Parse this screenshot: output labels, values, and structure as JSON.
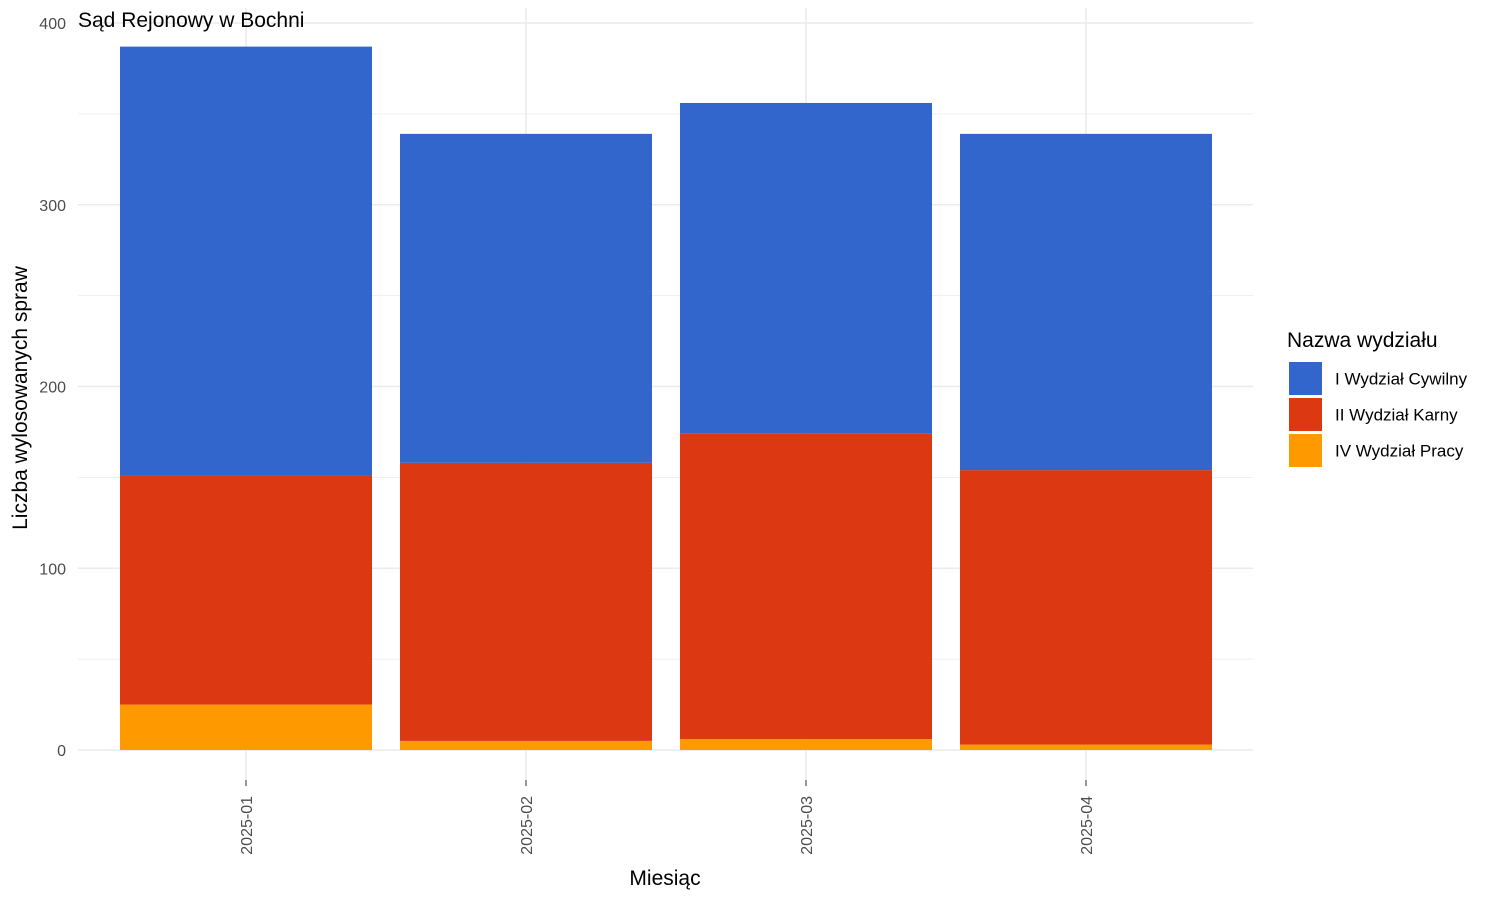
{
  "chart_data": {
    "type": "bar",
    "stacked": true,
    "title": "Sąd Rejonowy w Bochni",
    "xlabel": "Miesiąc",
    "ylabel": "Liczba wylosowanych spraw",
    "ylim": [
      0,
      400
    ],
    "yticks": [
      0,
      100,
      200,
      300,
      400
    ],
    "grid": true,
    "legend_position": "right",
    "legend_title": "Nazwa wydziału",
    "categories": [
      "2025-01",
      "2025-02",
      "2025-03",
      "2025-04"
    ],
    "series": [
      {
        "name": "I Wydział Cywilny",
        "color": "#3366cc",
        "values": [
          236,
          181,
          182,
          185
        ]
      },
      {
        "name": "II Wydział Karny",
        "color": "#dc3912",
        "values": [
          126,
          153,
          168,
          151
        ]
      },
      {
        "name": "IV Wydział Pracy",
        "color": "#ff9900",
        "values": [
          25,
          5,
          6,
          3
        ]
      }
    ]
  }
}
